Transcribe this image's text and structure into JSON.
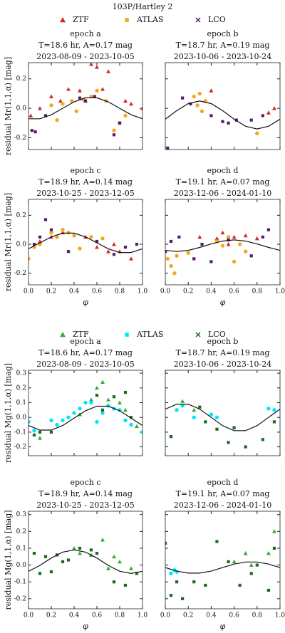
{
  "chart_data": [
    {
      "type": "scatter",
      "suptitle": "103P/Hartley 2",
      "title_lines": [
        "epoch a",
        "T=18.6 hr, A=0.17 mag",
        "2023-08-09 - 2023-10-05"
      ],
      "ylabel": "residual Mr(1,1,α) [mag]",
      "show_xtick_labels": false,
      "show_ytick_labels": true,
      "xlim": [
        0,
        1
      ],
      "ylim": [
        -0.28,
        0.31
      ],
      "xticks": [
        0,
        0.2,
        0.4,
        0.6,
        0.8,
        1
      ],
      "yticks": [
        -0.2,
        {
          "value": 0,
          "label": "0.0"
        },
        0.2
      ],
      "series": [
        {
          "name": "ZTF",
          "color": "#d62728",
          "marker": "triangle",
          "x": [
            0.02,
            0.1,
            0.2,
            0.28,
            0.35,
            0.45,
            0.5,
            0.55,
            0.6,
            0.65,
            0.7,
            0.85,
            0.9,
            1.0
          ],
          "values": [
            -0.05,
            0.0,
            0.08,
            0.05,
            0.13,
            0.12,
            0.05,
            0.3,
            0.28,
            0.13,
            0.25,
            0.05,
            0.03,
            0.0
          ]
        },
        {
          "name": "ATLAS",
          "color": "#f5a81c",
          "marker": "circle",
          "x": [
            0.2,
            0.25,
            0.3,
            0.38,
            0.42,
            0.48,
            0.55,
            0.6,
            0.68,
            0.75,
            0.8,
            0.85
          ],
          "values": [
            0.02,
            -0.08,
            0.03,
            0.05,
            -0.02,
            0.06,
            0.08,
            0.12,
            0.05,
            -0.15,
            -0.1,
            -0.05
          ]
        },
        {
          "name": "LCO",
          "color": "#5a1a6e",
          "marker": "square",
          "x": [
            0.03,
            0.06,
            0.15,
            0.45,
            0.5,
            0.58,
            0.75,
            0.8
          ],
          "values": [
            -0.15,
            -0.16,
            -0.05,
            0.07,
            0.05,
            0.08,
            -0.18,
            -0.1
          ]
        }
      ],
      "fit": {
        "color": "#111111",
        "x": [
          0,
          0.1,
          0.2,
          0.3,
          0.4,
          0.5,
          0.6,
          0.7,
          0.8,
          0.9,
          1
        ],
        "values": [
          -0.071,
          -0.071,
          -0.044,
          0,
          0.044,
          0.071,
          0.071,
          0.044,
          0,
          -0.044,
          -0.071
        ]
      }
    },
    {
      "type": "scatter",
      "title_lines": [
        "epoch b",
        "T=18.7 hr, A=0.19 mag",
        "2023-10-06 - 2023-10-24"
      ],
      "show_xtick_labels": false,
      "show_ytick_labels": false,
      "xlim": [
        0,
        1
      ],
      "ylim": [
        -0.28,
        0.31
      ],
      "xticks": [
        0,
        0.2,
        0.4,
        0.6,
        0.8,
        1
      ],
      "yticks": [
        -0.2,
        0,
        0.2
      ],
      "series": [
        {
          "color": "#d62728",
          "marker": "triangle",
          "x": [
            0.4,
            0.9,
            0.95
          ],
          "values": [
            0.12,
            -0.03,
            0.0
          ]
        },
        {
          "color": "#f5a81c",
          "marker": "circle",
          "x": [
            0.25,
            0.28,
            0.3,
            0.32,
            0.35,
            0.8
          ],
          "values": [
            0.08,
            0.02,
            0.1,
            -0.02,
            0.05,
            -0.17
          ]
        },
        {
          "color": "#5a1a6e",
          "marker": "square",
          "x": [
            0.02,
            0.15,
            0.22,
            0.4,
            0.5,
            0.55,
            0.62,
            0.75,
            0.85
          ],
          "values": [
            -0.27,
            0.07,
            0.03,
            -0.05,
            -0.09,
            -0.1,
            -0.08,
            -0.08,
            -0.05
          ]
        }
      ],
      "fit": {
        "color": "#111111",
        "x": [
          0,
          0.1,
          0.2,
          0.3,
          0.4,
          0.5,
          0.6,
          0.7,
          0.8,
          0.9,
          1
        ],
        "values": [
          -0.074,
          -0.016,
          0.032,
          0.05,
          0.032,
          -0.016,
          -0.074,
          -0.122,
          -0.14,
          -0.122,
          -0.074
        ]
      }
    },
    {
      "type": "scatter",
      "title_lines": [
        "epoch c",
        "T=18.9 hr, A=0.14 mag",
        "2023-10-25 - 2023-12-05"
      ],
      "ylabel": "residual Mr(1,1,α) [mag]",
      "xlabel": "φ",
      "show_xtick_labels": true,
      "show_ytick_labels": true,
      "xlim": [
        0,
        1
      ],
      "ylim": [
        -0.28,
        0.31
      ],
      "xticks": [
        {
          "value": 0,
          "label": "0.0"
        },
        0.2,
        0.4,
        0.6,
        0.8,
        {
          "value": 1,
          "label": "1.0"
        }
      ],
      "yticks": [
        -0.2,
        {
          "value": 0,
          "label": "0.0"
        },
        0.2
      ],
      "series": [
        {
          "color": "#d62728",
          "marker": "triangle",
          "x": [
            0.1,
            0.2,
            0.3,
            0.5,
            0.6,
            0.7,
            0.75,
            0.8,
            0.9
          ],
          "values": [
            0.02,
            0.05,
            0.08,
            0.05,
            -0.02,
            -0.05,
            0.0,
            -0.05,
            -0.1
          ]
        },
        {
          "color": "#f5a81c",
          "marker": "circle",
          "x": [
            0.0,
            0.05,
            0.1,
            0.2,
            0.25,
            0.3,
            0.35,
            0.4,
            0.45,
            0.55,
            0.65
          ],
          "values": [
            -0.1,
            -0.02,
            0.0,
            0.08,
            0.05,
            0.1,
            0.08,
            0.06,
            -0.03,
            0.05,
            0.04
          ]
        },
        {
          "color": "#5a1a6e",
          "marker": "square",
          "x": [
            0.05,
            0.1,
            0.15,
            0.2,
            0.35,
            0.6,
            0.75,
            0.85,
            0.95
          ],
          "values": [
            0.0,
            0.05,
            0.17,
            0.1,
            -0.05,
            0.02,
            -0.07,
            -0.02,
            0.0
          ]
        }
      ],
      "fit": {
        "color": "#111111",
        "x": [
          0,
          0.1,
          0.2,
          0.3,
          0.4,
          0.5,
          0.6,
          0.7,
          0.8,
          0.9,
          1
        ],
        "values": [
          -0.031,
          0.01,
          0.051,
          0.077,
          0.077,
          0.051,
          0.01,
          -0.031,
          -0.057,
          -0.057,
          -0.031
        ]
      }
    },
    {
      "type": "scatter",
      "title_lines": [
        "epoch d",
        "T=19.1 hr, A=0.07 mag",
        "2023-12-06 - 2024-01-10"
      ],
      "xlabel": "φ",
      "show_xtick_labels": true,
      "show_ytick_labels": false,
      "xlim": [
        0,
        1
      ],
      "ylim": [
        -0.28,
        0.31
      ],
      "xticks": [
        {
          "value": 0,
          "label": "0.0"
        },
        0.2,
        0.4,
        0.6,
        0.8,
        {
          "value": 1,
          "label": "1.0"
        }
      ],
      "yticks": [
        -0.2,
        0,
        0.2
      ],
      "series": [
        {
          "color": "#d62728",
          "marker": "triangle",
          "x": [
            0.3,
            0.45,
            0.5,
            0.55,
            0.6,
            0.7,
            0.8
          ],
          "values": [
            0.05,
            0.04,
            0.08,
            0.0,
            0.05,
            0.06,
            0.04
          ]
        },
        {
          "color": "#f5a81c",
          "marker": "circle",
          "x": [
            0.02,
            0.05,
            0.08,
            0.1,
            0.2,
            0.45,
            0.5,
            0.55,
            0.6,
            0.65,
            0.7
          ],
          "values": [
            -0.1,
            -0.15,
            -0.2,
            -0.08,
            -0.06,
            0.02,
            -0.01,
            0.05,
            -0.12,
            0.0,
            -0.05
          ]
        },
        {
          "color": "#5a1a6e",
          "marker": "square",
          "x": [
            0.0,
            0.05,
            0.12,
            0.25,
            0.32,
            0.4,
            0.55,
            0.75,
            0.85,
            0.9
          ],
          "values": [
            -0.05,
            0.02,
            0.05,
            -0.1,
            0.0,
            -0.12,
            0.03,
            -0.08,
            0.05,
            0.1
          ]
        }
      ],
      "fit": {
        "color": "#111111",
        "x": [
          0,
          0.1,
          0.2,
          0.3,
          0.4,
          0.5,
          0.6,
          0.7,
          0.8,
          0.9,
          1
        ],
        "values": [
          -0.042,
          -0.05,
          -0.042,
          -0.022,
          0.002,
          0.022,
          0.03,
          0.022,
          0.002,
          -0.022,
          -0.042
        ]
      }
    },
    {
      "type": "scatter",
      "title_lines": [
        "epoch a",
        "T=18.6 hr, A=0.17 mag",
        "2023-08-09 - 2023-10-05"
      ],
      "ylabel": "residual Mg(1,1,α) [mag]",
      "show_xtick_labels": false,
      "show_ytick_labels": true,
      "xlim": [
        0,
        1
      ],
      "ylim": [
        -0.26,
        0.32
      ],
      "xticks": [
        0,
        0.2,
        0.4,
        0.6,
        0.8,
        1
      ],
      "yticks": [
        -0.2,
        -0.1,
        {
          "value": 0,
          "label": "0.0"
        },
        0.1,
        0.2,
        0.3
      ],
      "series": [
        {
          "name": "ZTF",
          "color": "#3aa83a",
          "marker": "triangle",
          "x": [
            0.1,
            0.45,
            0.55,
            0.6,
            0.65,
            0.7,
            0.8,
            0.85,
            0.95
          ],
          "values": [
            -0.14,
            0.02,
            0.12,
            0.2,
            0.24,
            0.12,
            0.1,
            0.05,
            -0.06
          ]
        },
        {
          "name": "ATLAS",
          "color": "#00e5ff",
          "marker": "circle",
          "x": [
            0.0,
            0.05,
            0.2,
            0.25,
            0.3,
            0.35,
            0.4,
            0.45,
            0.5,
            0.55,
            0.6,
            0.65,
            0.7,
            0.75,
            0.8,
            0.85,
            0.9,
            1.0
          ],
          "values": [
            -0.03,
            -0.09,
            -0.02,
            -0.05,
            -0.02,
            0.0,
            0.03,
            0.06,
            0.1,
            0.1,
            -0.03,
            0.03,
            0.08,
            0.06,
            0.05,
            -0.02,
            -0.05,
            -0.1
          ]
        },
        {
          "name": "LCO",
          "color": "#1b6b1b",
          "marker": "square",
          "x": [
            0.05,
            0.1,
            0.2,
            0.6,
            0.65,
            0.75,
            0.85,
            0.9
          ],
          "values": [
            -0.12,
            -0.1,
            -0.1,
            0.15,
            0.05,
            0.14,
            0.17,
            0.0
          ]
        }
      ],
      "fit": {
        "color": "#111111",
        "x": [
          0,
          0.1,
          0.2,
          0.3,
          0.4,
          0.5,
          0.6,
          0.7,
          0.8,
          0.9,
          1
        ],
        "values": [
          -0.055,
          -0.086,
          -0.086,
          -0.055,
          -0.005,
          0.045,
          0.076,
          0.076,
          0.045,
          -0.005,
          -0.055
        ]
      }
    },
    {
      "type": "scatter",
      "title_lines": [
        "epoch b",
        "T=18.7 hr, A=0.19 mag",
        "2023-10-06 - 2023-10-24"
      ],
      "show_xtick_labels": false,
      "show_ytick_labels": false,
      "xlim": [
        0,
        1
      ],
      "ylim": [
        -0.26,
        0.32
      ],
      "xticks": [
        0,
        0.2,
        0.4,
        0.6,
        0.8,
        1
      ],
      "yticks": [
        -0.2,
        -0.1,
        0,
        0.1,
        0.2,
        0.3
      ],
      "series": [
        {
          "color": "#3aa83a",
          "marker": "triangle",
          "x": [
            0.15,
            0.25
          ],
          "values": [
            0.11,
            0.05
          ]
        },
        {
          "color": "#00e5ff",
          "marker": "circle",
          "x": [
            0.1,
            0.15,
            0.25,
            0.4,
            0.45,
            0.9,
            0.95
          ],
          "values": [
            0.05,
            0.08,
            0.0,
            0.02,
            0.0,
            0.06,
            0.05
          ]
        },
        {
          "color": "#1b6b1b",
          "marker": "square",
          "x": [
            0.05,
            0.3,
            0.35,
            0.45,
            0.55,
            0.6,
            0.7,
            0.85,
            0.95
          ],
          "values": [
            -0.13,
            0.07,
            -0.03,
            -0.08,
            -0.17,
            -0.07,
            -0.2,
            -0.15,
            -0.03
          ]
        }
      ],
      "fit": {
        "color": "#111111",
        "x": [
          0,
          0.1,
          0.2,
          0.3,
          0.4,
          0.5,
          0.6,
          0.7,
          0.8,
          0.9,
          1
        ],
        "values": [
          0.056,
          0.09,
          0.09,
          0.056,
          0,
          -0.056,
          -0.09,
          -0.09,
          -0.056,
          0,
          0.056
        ]
      }
    },
    {
      "type": "scatter",
      "title_lines": [
        "epoch c",
        "T=18.9 hr, A=0.14 mag",
        "2023-10-25 - 2023-12-05"
      ],
      "ylabel": "residual Mg(1,1,α) [mag]",
      "xlabel": "φ",
      "show_xtick_labels": true,
      "show_ytick_labels": true,
      "xlim": [
        0,
        1
      ],
      "ylim": [
        -0.26,
        0.32
      ],
      "xticks": [
        {
          "value": 0,
          "label": "0.0"
        },
        0.2,
        0.4,
        0.6,
        0.8,
        {
          "value": 1,
          "label": "1.0"
        }
      ],
      "yticks": [
        -0.2,
        -0.1,
        {
          "value": 0,
          "label": "0.0"
        },
        0.1,
        0.2,
        0.3
      ],
      "series": [
        {
          "color": "#3aa83a",
          "marker": "triangle",
          "x": [
            0.4,
            0.45,
            0.55,
            0.65,
            0.7,
            0.75,
            0.8,
            0.9
          ],
          "values": [
            0.1,
            0.07,
            0.06,
            0.15,
            -0.02,
            0.05,
            0.02,
            -0.02
          ]
        },
        {
          "color": "#00e5ff",
          "marker": "circle",
          "x": [],
          "values": []
        },
        {
          "color": "#1b6b1b",
          "marker": "square",
          "x": [
            0.05,
            0.1,
            0.15,
            0.2,
            0.25,
            0.3,
            0.35,
            0.45,
            0.55,
            0.6,
            0.75,
            0.85,
            0.95
          ],
          "values": [
            0.07,
            -0.05,
            0.05,
            -0.04,
            0.06,
            0.02,
            0.03,
            0.1,
            0.09,
            0.07,
            -0.1,
            -0.12,
            -0.05
          ]
        }
      ],
      "fit": {
        "color": "#111111",
        "x": [
          0,
          0.1,
          0.2,
          0.3,
          0.4,
          0.5,
          0.6,
          0.7,
          0.8,
          0.9,
          1
        ],
        "values": [
          -0.037,
          -0.002,
          0.042,
          0.077,
          0.09,
          0.077,
          0.042,
          -0.002,
          -0.037,
          -0.05,
          -0.037
        ]
      }
    },
    {
      "type": "scatter",
      "title_lines": [
        "epoch d",
        "T=19.1 hr, A=0.07 mag",
        "2023-12-06 - 2024-01-10"
      ],
      "xlabel": "φ",
      "show_xtick_labels": true,
      "show_ytick_labels": false,
      "xlim": [
        0,
        1
      ],
      "ylim": [
        -0.26,
        0.32
      ],
      "xticks": [
        {
          "value": 0,
          "label": "0.0"
        },
        0.2,
        0.4,
        0.6,
        0.8,
        {
          "value": 1,
          "label": "1.0"
        }
      ],
      "yticks": [
        -0.2,
        -0.1,
        0,
        0.1,
        0.2,
        0.3
      ],
      "series": [
        {
          "color": "#3aa83a",
          "marker": "triangle",
          "x": [
            0.6,
            0.7,
            0.75,
            0.9,
            0.95
          ],
          "values": [
            0.02,
            0.07,
            0.0,
            0.07,
            0.2
          ]
        },
        {
          "color": "#00e5ff",
          "marker": "circle",
          "x": [
            0.05,
            0.08,
            0.1
          ],
          "values": [
            -0.05,
            -0.03,
            -0.04
          ]
        },
        {
          "color": "#1b6b1b",
          "marker": "square",
          "x": [
            0.0,
            0.05,
            0.1,
            0.15,
            0.25,
            0.35,
            0.45,
            0.55,
            0.65,
            0.75,
            0.8,
            0.9,
            0.95
          ],
          "values": [
            0.13,
            -0.18,
            -0.1,
            -0.2,
            -0.1,
            -0.12,
            0.14,
            0.02,
            -0.12,
            -0.05,
            0.0,
            -0.15,
            0.1
          ]
        }
      ],
      "fit": {
        "color": "#111111",
        "x": [
          0,
          0.1,
          0.2,
          0.3,
          0.4,
          0.5,
          0.6,
          0.7,
          0.8,
          0.9,
          1
        ],
        "values": [
          -0.015,
          -0.036,
          -0.048,
          -0.048,
          -0.036,
          -0.015,
          0.006,
          0.018,
          0.018,
          0.006,
          -0.015
        ]
      }
    }
  ]
}
